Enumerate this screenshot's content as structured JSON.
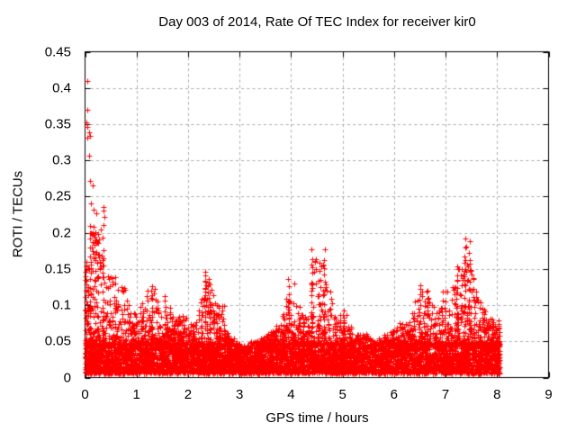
{
  "chart_data": {
    "type": "scatter",
    "title": "Day 003 of 2014, Rate Of TEC Index for receiver kir0",
    "xlabel": "GPS time / hours",
    "ylabel": "ROTI / TECUs",
    "xlim": [
      0,
      9
    ],
    "ylim": [
      0,
      0.45
    ],
    "xticks": [
      {
        "v": 0,
        "label": "0"
      },
      {
        "v": 1,
        "label": "1"
      },
      {
        "v": 2,
        "label": "2"
      },
      {
        "v": 3,
        "label": "3"
      },
      {
        "v": 4,
        "label": "4"
      },
      {
        "v": 5,
        "label": "5"
      },
      {
        "v": 6,
        "label": "6"
      },
      {
        "v": 7,
        "label": "7"
      },
      {
        "v": 8,
        "label": "8"
      },
      {
        "v": 9,
        "label": "9"
      }
    ],
    "yticks": [
      {
        "v": 0.0,
        "label": "0"
      },
      {
        "v": 0.05,
        "label": "0.05"
      },
      {
        "v": 0.1,
        "label": "0.1"
      },
      {
        "v": 0.15,
        "label": "0.15"
      },
      {
        "v": 0.2,
        "label": "0.2"
      },
      {
        "v": 0.25,
        "label": "0.25"
      },
      {
        "v": 0.3,
        "label": "0.3"
      },
      {
        "v": 0.35,
        "label": "0.35"
      },
      {
        "v": 0.4,
        "label": "0.4"
      },
      {
        "v": 0.45,
        "label": "0.45"
      }
    ],
    "grid": true,
    "legend": "none",
    "series": [
      {
        "name": "ROTI",
        "marker": "plus",
        "color": "#ff0000"
      }
    ],
    "data_extent": {
      "t_start": 0.0,
      "t_end": 8.05,
      "v_min": 0.003,
      "v_max": 0.41
    },
    "envelope_bins": {
      "comment": "dense scatter summarized as [t_bin_start, cloud_top_TECUs, point_count] per 0.1 h",
      "bin_width": 0.1,
      "bins": [
        [
          0.0,
          0.22,
          140
        ],
        [
          0.1,
          0.21,
          140
        ],
        [
          0.2,
          0.2,
          130
        ],
        [
          0.3,
          0.17,
          120
        ],
        [
          0.4,
          0.16,
          115
        ],
        [
          0.5,
          0.145,
          110
        ],
        [
          0.6,
          0.13,
          105
        ],
        [
          0.7,
          0.13,
          105
        ],
        [
          0.8,
          0.12,
          100
        ],
        [
          0.9,
          0.11,
          100
        ],
        [
          1.0,
          0.1,
          100
        ],
        [
          1.1,
          0.105,
          100
        ],
        [
          1.2,
          0.13,
          100
        ],
        [
          1.3,
          0.125,
          100
        ],
        [
          1.4,
          0.11,
          100
        ],
        [
          1.5,
          0.115,
          100
        ],
        [
          1.6,
          0.1,
          100
        ],
        [
          1.7,
          0.095,
          100
        ],
        [
          1.8,
          0.095,
          100
        ],
        [
          1.9,
          0.085,
          100
        ],
        [
          2.0,
          0.075,
          100
        ],
        [
          2.1,
          0.08,
          100
        ],
        [
          2.2,
          0.11,
          100
        ],
        [
          2.3,
          0.145,
          100
        ],
        [
          2.4,
          0.125,
          100
        ],
        [
          2.5,
          0.105,
          95
        ],
        [
          2.6,
          0.1,
          95
        ],
        [
          2.7,
          0.065,
          95
        ],
        [
          2.8,
          0.055,
          95
        ],
        [
          2.9,
          0.05,
          95
        ],
        [
          3.0,
          0.045,
          95
        ],
        [
          3.1,
          0.045,
          95
        ],
        [
          3.2,
          0.05,
          95
        ],
        [
          3.3,
          0.05,
          95
        ],
        [
          3.4,
          0.055,
          95
        ],
        [
          3.5,
          0.06,
          95
        ],
        [
          3.6,
          0.065,
          95
        ],
        [
          3.7,
          0.075,
          95
        ],
        [
          3.8,
          0.09,
          100
        ],
        [
          3.9,
          0.11,
          100
        ],
        [
          4.0,
          0.135,
          100
        ],
        [
          4.1,
          0.1,
          100
        ],
        [
          4.2,
          0.09,
          100
        ],
        [
          4.3,
          0.1,
          100
        ],
        [
          4.4,
          0.175,
          100
        ],
        [
          4.5,
          0.16,
          100
        ],
        [
          4.6,
          0.175,
          100
        ],
        [
          4.7,
          0.12,
          95
        ],
        [
          4.8,
          0.085,
          95
        ],
        [
          4.9,
          0.09,
          95
        ],
        [
          5.0,
          0.09,
          95
        ],
        [
          5.1,
          0.075,
          90
        ],
        [
          5.2,
          0.06,
          85
        ],
        [
          5.3,
          0.06,
          80
        ],
        [
          5.4,
          0.06,
          75
        ],
        [
          5.5,
          0.055,
          75
        ],
        [
          5.6,
          0.05,
          80
        ],
        [
          5.7,
          0.055,
          85
        ],
        [
          5.8,
          0.06,
          90
        ],
        [
          5.9,
          0.065,
          90
        ],
        [
          6.0,
          0.07,
          95
        ],
        [
          6.1,
          0.075,
          95
        ],
        [
          6.2,
          0.08,
          95
        ],
        [
          6.3,
          0.09,
          95
        ],
        [
          6.4,
          0.11,
          100
        ],
        [
          6.5,
          0.125,
          100
        ],
        [
          6.6,
          0.12,
          100
        ],
        [
          6.7,
          0.1,
          100
        ],
        [
          6.8,
          0.095,
          100
        ],
        [
          6.9,
          0.1,
          100
        ],
        [
          7.0,
          0.12,
          100
        ],
        [
          7.1,
          0.13,
          100
        ],
        [
          7.2,
          0.155,
          100
        ],
        [
          7.3,
          0.16,
          100
        ],
        [
          7.4,
          0.19,
          100
        ],
        [
          7.5,
          0.14,
          100
        ],
        [
          7.6,
          0.11,
          100
        ],
        [
          7.7,
          0.095,
          100
        ],
        [
          7.8,
          0.085,
          100
        ],
        [
          7.9,
          0.08,
          100
        ],
        [
          8.0,
          0.075,
          55
        ]
      ]
    },
    "spike_arcs": {
      "comment": "narrow vertical satellite-arc enhancements [t, v_low, v_high, n_points]",
      "arcs": [
        [
          0.02,
          0.04,
          0.16,
          16
        ],
        [
          0.1,
          0.05,
          0.21,
          16
        ],
        [
          0.2,
          0.05,
          0.2,
          12
        ],
        [
          0.35,
          0.06,
          0.232,
          10
        ],
        [
          1.3,
          0.04,
          0.128,
          10
        ],
        [
          1.55,
          0.04,
          0.115,
          8
        ],
        [
          2.33,
          0.07,
          0.146,
          12
        ],
        [
          2.42,
          0.05,
          0.128,
          8
        ],
        [
          2.6,
          0.03,
          0.1,
          8
        ],
        [
          3.85,
          0.03,
          0.09,
          8
        ],
        [
          3.95,
          0.04,
          0.136,
          10
        ],
        [
          4.4,
          0.06,
          0.175,
          12
        ],
        [
          4.55,
          0.05,
          0.16,
          10
        ],
        [
          4.65,
          0.06,
          0.175,
          12
        ],
        [
          5.02,
          0.04,
          0.092,
          8
        ],
        [
          6.5,
          0.04,
          0.126,
          10
        ],
        [
          6.65,
          0.04,
          0.12,
          8
        ],
        [
          6.93,
          0.04,
          0.12,
          8
        ],
        [
          7.22,
          0.05,
          0.155,
          10
        ],
        [
          7.38,
          0.06,
          0.19,
          14
        ],
        [
          7.45,
          0.05,
          0.15,
          8
        ],
        [
          7.55,
          0.04,
          0.135,
          8
        ],
        [
          8.03,
          0.008,
          0.078,
          14
        ]
      ]
    },
    "outliers": [
      [
        0.04,
        0.41
      ],
      [
        0.05,
        0.37
      ],
      [
        0.03,
        0.352
      ],
      [
        0.05,
        0.346
      ],
      [
        0.07,
        0.339
      ],
      [
        0.05,
        0.331
      ],
      [
        0.09,
        0.334
      ],
      [
        0.07,
        0.306
      ],
      [
        0.1,
        0.272
      ],
      [
        0.14,
        0.265
      ],
      [
        0.12,
        0.24
      ],
      [
        0.17,
        0.232
      ],
      [
        0.21,
        0.227
      ],
      [
        0.35,
        0.231
      ],
      [
        0.37,
        0.222
      ],
      [
        0.3,
        0.205
      ],
      [
        0.25,
        0.198
      ],
      [
        0.15,
        0.2
      ],
      [
        0.18,
        0.195
      ],
      [
        0.22,
        0.19
      ]
    ]
  },
  "style": {
    "background": "#ffffff",
    "axis_color": "#000000",
    "grid_color": "#ababab",
    "point_color": "#ff0000",
    "text_color": "#000000"
  }
}
